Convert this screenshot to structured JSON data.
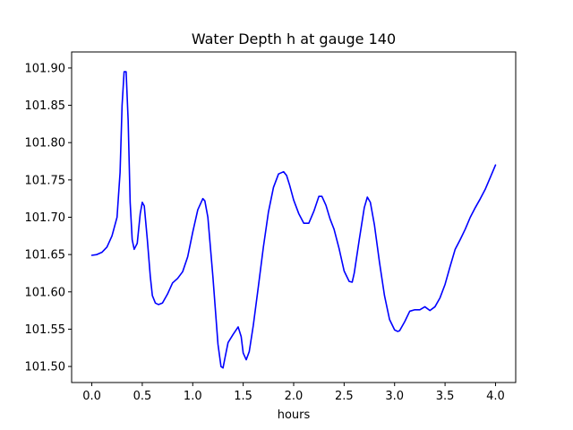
{
  "chart_data": {
    "type": "line",
    "title": "Water Depth h at gauge 140",
    "xlabel": "hours",
    "ylabel": "",
    "xlim": [
      -0.2,
      4.2
    ],
    "ylim": [
      101.4785,
      101.9215
    ],
    "x_ticks": [
      0.0,
      0.5,
      1.0,
      1.5,
      2.0,
      2.5,
      3.0,
      3.5,
      4.0
    ],
    "x_tick_labels": [
      "0.0",
      "0.5",
      "1.0",
      "1.5",
      "2.0",
      "2.5",
      "3.0",
      "3.5",
      "4.0"
    ],
    "y_ticks": [
      101.5,
      101.55,
      101.6,
      101.65,
      101.7,
      101.75,
      101.8,
      101.85,
      101.9
    ],
    "y_tick_labels": [
      "101.50",
      "101.55",
      "101.60",
      "101.65",
      "101.70",
      "101.75",
      "101.80",
      "101.85",
      "101.90"
    ],
    "grid": false,
    "series": [
      {
        "color": "#0000ff",
        "x": [
          0.0,
          0.05,
          0.1,
          0.15,
          0.2,
          0.25,
          0.28,
          0.3,
          0.32,
          0.34,
          0.36,
          0.38,
          0.4,
          0.42,
          0.45,
          0.48,
          0.5,
          0.52,
          0.55,
          0.58,
          0.6,
          0.63,
          0.66,
          0.7,
          0.75,
          0.8,
          0.85,
          0.9,
          0.95,
          1.0,
          1.05,
          1.1,
          1.12,
          1.15,
          1.2,
          1.25,
          1.28,
          1.3,
          1.32,
          1.35,
          1.4,
          1.45,
          1.48,
          1.5,
          1.53,
          1.56,
          1.6,
          1.65,
          1.7,
          1.75,
          1.8,
          1.85,
          1.9,
          1.93,
          1.96,
          2.0,
          2.05,
          2.1,
          2.15,
          2.2,
          2.25,
          2.28,
          2.32,
          2.36,
          2.4,
          2.45,
          2.5,
          2.55,
          2.58,
          2.6,
          2.65,
          2.7,
          2.73,
          2.76,
          2.8,
          2.85,
          2.9,
          2.95,
          3.0,
          3.03,
          3.05,
          3.1,
          3.15,
          3.2,
          3.25,
          3.3,
          3.35,
          3.4,
          3.45,
          3.5,
          3.55,
          3.6,
          3.65,
          3.7,
          3.75,
          3.8,
          3.85,
          3.9,
          3.95,
          4.0
        ],
        "values": [
          101.649,
          101.65,
          101.653,
          101.66,
          101.675,
          101.7,
          101.76,
          101.85,
          101.895,
          101.895,
          101.83,
          101.72,
          101.67,
          101.657,
          101.665,
          101.705,
          101.72,
          101.715,
          101.67,
          101.62,
          101.595,
          101.585,
          101.583,
          101.585,
          101.597,
          101.612,
          101.618,
          101.627,
          101.647,
          101.68,
          101.71,
          101.725,
          101.722,
          101.7,
          101.62,
          101.53,
          101.5,
          101.498,
          101.512,
          101.532,
          101.543,
          101.553,
          101.54,
          101.518,
          101.509,
          101.52,
          101.555,
          101.607,
          101.66,
          101.707,
          101.74,
          101.758,
          101.761,
          101.756,
          101.743,
          101.723,
          101.705,
          101.692,
          101.692,
          101.708,
          101.728,
          101.728,
          101.716,
          101.698,
          101.684,
          101.658,
          101.628,
          101.614,
          101.613,
          101.625,
          101.67,
          101.713,
          101.727,
          101.72,
          101.69,
          101.64,
          101.595,
          101.563,
          101.549,
          101.547,
          101.548,
          101.56,
          101.574,
          101.576,
          101.576,
          101.58,
          101.575,
          101.58,
          101.592,
          101.61,
          101.634,
          101.657,
          101.67,
          101.684,
          101.7,
          101.713,
          101.725,
          101.738,
          101.754,
          101.77
        ]
      }
    ]
  }
}
